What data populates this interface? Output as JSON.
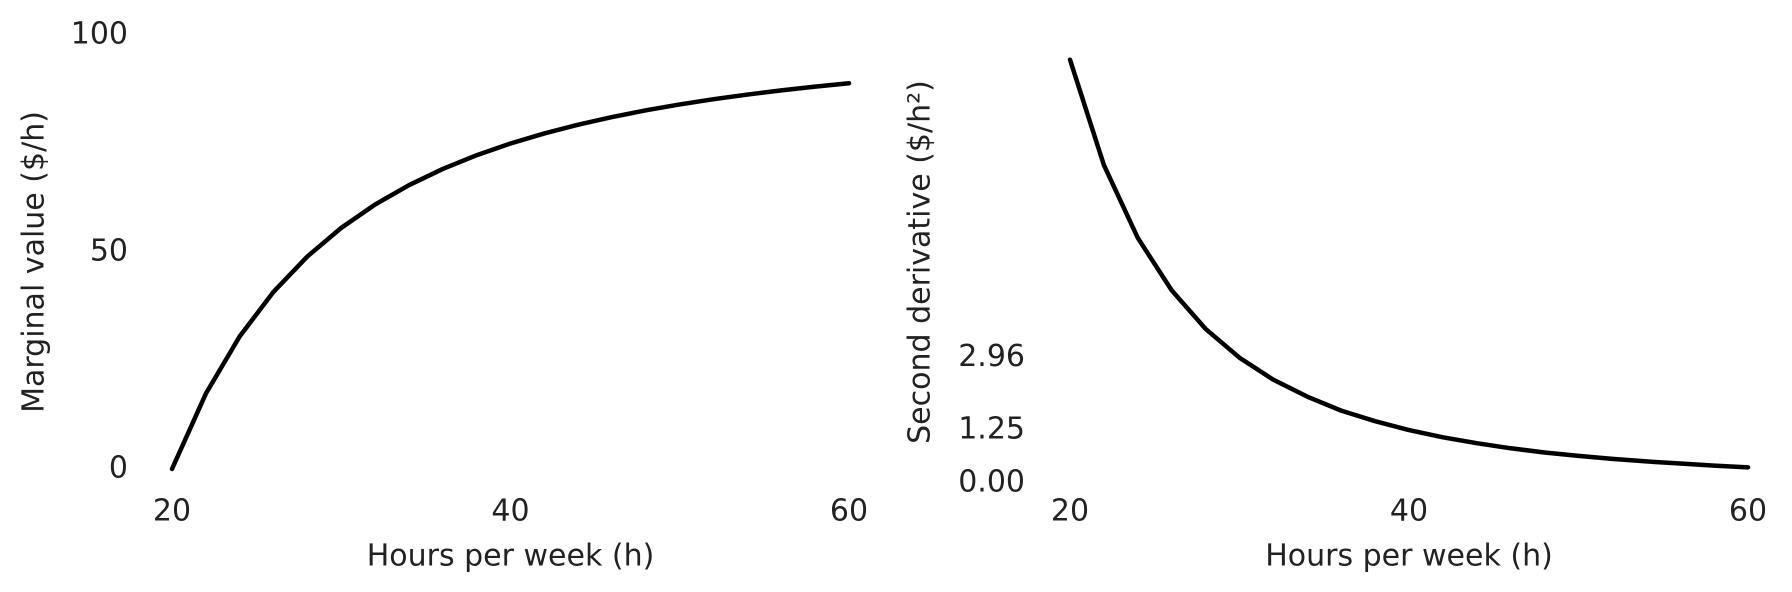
{
  "chart_data": [
    {
      "type": "line",
      "xlabel": "Hours per week (h)",
      "ylabel": "Marginal value ($/h)",
      "x": [
        20,
        22,
        24,
        26,
        28,
        30,
        32,
        34,
        36,
        38,
        40,
        42,
        44,
        46,
        48,
        50,
        52,
        54,
        56,
        58,
        60
      ],
      "series": [
        {
          "color": "#000000",
          "values": [
            0,
            17.36,
            30.56,
            40.83,
            48.98,
            55.56,
            60.94,
            65.4,
            69.14,
            72.3,
            75,
            77.32,
            79.34,
            81.1,
            82.64,
            84,
            85.21,
            86.28,
            87.24,
            88.11,
            88.89
          ]
        }
      ],
      "xlim": [
        20,
        60
      ],
      "xticks": [
        20,
        40,
        60
      ],
      "ylim": [
        0,
        100
      ],
      "yticks": [
        0,
        50,
        100
      ],
      "grid": false
    },
    {
      "type": "line",
      "xlabel": "Hours per week (h)",
      "ylabel": "Second derivative ($/h²)",
      "x": [
        20,
        22,
        24,
        26,
        28,
        30,
        32,
        34,
        36,
        38,
        40,
        42,
        44,
        46,
        48,
        50,
        52,
        54,
        56,
        58,
        60
      ],
      "series": [
        {
          "color": "#000000",
          "values": [
            10,
            7.51,
            5.79,
            4.55,
            3.64,
            2.96,
            2.44,
            2.04,
            1.71,
            1.46,
            1.25,
            1.08,
            0.94,
            0.82,
            0.72,
            0.64,
            0.57,
            0.51,
            0.46,
            0.41,
            0.37
          ]
        }
      ],
      "xlim": [
        20,
        60
      ],
      "xticks": [
        20,
        40,
        60
      ],
      "ylim": [
        0,
        10.3
      ],
      "yticks": [
        {
          "value": 0,
          "label": "0.00"
        },
        {
          "value": 1.25,
          "label": "1.25"
        },
        {
          "value": 2.96,
          "label": "2.96"
        }
      ],
      "grid": false
    }
  ]
}
